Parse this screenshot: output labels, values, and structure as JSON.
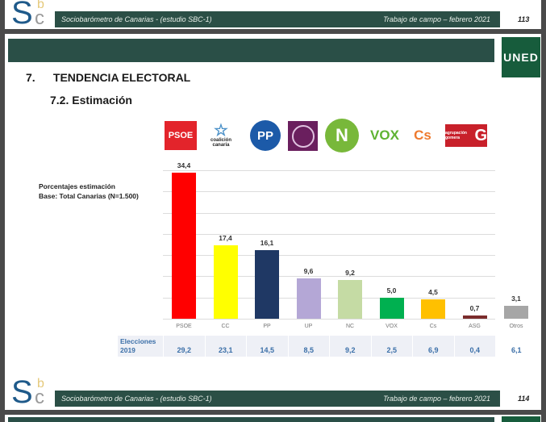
{
  "top_footer": {
    "study": "Sociobarómetro de Canarias -  (estudio SBC-1)",
    "fieldwork": "Trabajo de campo – febrero 2021",
    "page": "113",
    "logo": {
      "S": "S",
      "b": "b",
      "c": "c"
    }
  },
  "header": {
    "uned_logo": "UNED",
    "section_number": "7.",
    "section_title": "TENDENCIA ELECTORAL",
    "subsection_title": "7.2. Estimación"
  },
  "note": {
    "line1": "Porcentajes estimación",
    "line2": "Base: Total Canarias (N=1.500)"
  },
  "party_logos": {
    "psoe": "PSOE",
    "cc_star": "☆",
    "cc_text1": "coalición",
    "cc_text2": "canaria",
    "pp": "PP",
    "nc": "N",
    "vox": "VOX",
    "cs": "Cs",
    "asg_small": "agrupación gomera",
    "asg_G": "G"
  },
  "chart_data": {
    "type": "bar",
    "title": "Estimación",
    "categories": [
      "PSOE",
      "CC",
      "PP",
      "UP",
      "NC",
      "VOX",
      "Cs",
      "ASG",
      "Otros"
    ],
    "values": [
      34.4,
      17.4,
      16.1,
      9.6,
      9.2,
      5.0,
      4.5,
      0.7,
      3.1
    ],
    "value_labels": [
      "34,4",
      "17,4",
      "16,1",
      "9,6",
      "9,2",
      "5,0",
      "4,5",
      "0,7",
      "3,1"
    ],
    "colors": [
      "#ff0000",
      "#ffff00",
      "#1f3864",
      "#b4a7d6",
      "#c5dba4",
      "#00b050",
      "#ffc000",
      "#7b2c2c",
      "#a6a6a6"
    ],
    "xlabel": "",
    "ylabel": "Porcentajes estimación",
    "ylim": [
      0,
      35
    ],
    "grid": true,
    "gridline_step": 5,
    "comparison_row": {
      "label_line1": "Elecciones",
      "label_line2": "2019",
      "values": [
        29.2,
        23.1,
        14.5,
        8.5,
        9.2,
        2.5,
        6.9,
        0.4,
        6.1
      ],
      "value_labels": [
        "29,2",
        "23,1",
        "14,5",
        "8,5",
        "9,2",
        "2,5",
        "6,9",
        "0,4",
        "6,1"
      ]
    }
  },
  "bottom_footer": {
    "study": "Sociobarómetro de Canarias -  (estudio SBC-1)",
    "fieldwork": "Trabajo de campo – febrero 2021",
    "page": "114"
  }
}
